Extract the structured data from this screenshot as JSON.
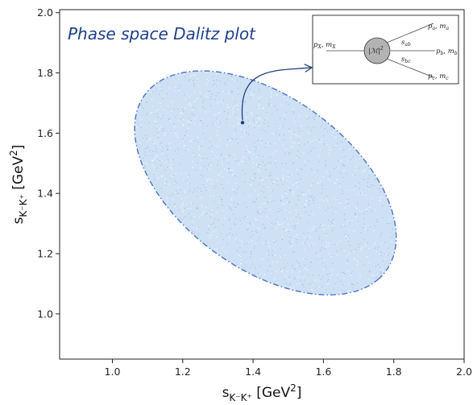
{
  "chart_data": {
    "type": "scatter",
    "title": "Phase space Dalitz plot",
    "xlabel": {
      "base": "s",
      "sub": "K⁻K⁺",
      "unit": "[GeV",
      "sup": "2",
      "close": "]"
    },
    "ylabel": {
      "base": "s",
      "sub": "K⁻K⁺",
      "unit": "[GeV",
      "sup": "2",
      "close": "]"
    },
    "xlim": [
      0.85,
      2.0
    ],
    "ylim": [
      0.85,
      2.01
    ],
    "xticks": [
      1.0,
      1.2,
      1.4,
      1.6,
      1.8,
      2.0
    ],
    "xtick_labels": [
      "1.0",
      "1.2",
      "1.4",
      "1.6",
      "1.8",
      "2.0"
    ],
    "yticks": [
      1.0,
      1.2,
      1.4,
      1.6,
      1.8,
      2.0
    ],
    "ytick_labels": [
      "1.0",
      "1.2",
      "1.4",
      "1.6",
      "1.8",
      "2.0"
    ],
    "grid": false,
    "region": {
      "description_boundary": "dash-dot outline of kinematically allowed region",
      "center": [
        1.435,
        1.435
      ],
      "x_extent": [
        0.975,
        1.895
      ],
      "y_extent": [
        0.975,
        1.895
      ],
      "fill_color": "#c6dcf2",
      "edge_color": "#4a72c8"
    },
    "marker_point": [
      1.37,
      1.635
    ],
    "arrow_color": "#1f3f7a",
    "inset": {
      "labels": {
        "px_prefix": "p",
        "px_sub": "X",
        "mx": ", m",
        "mx_sub": "X",
        "matrix": "|ℳ|",
        "matrix_sup": "2",
        "pa": "p",
        "pa_sub": "a",
        "ma": ", m",
        "ma_sub": "a",
        "pb": "p",
        "pb_sub": "b",
        "mb": ", m",
        "mb_sub": "b",
        "pc": "p",
        "pc_sub": "c",
        "mc": ", m",
        "mc_sub": "c",
        "sab": "s",
        "sab_sub": "ab",
        "sbc": "s",
        "sbc_sub": "bc"
      }
    }
  }
}
